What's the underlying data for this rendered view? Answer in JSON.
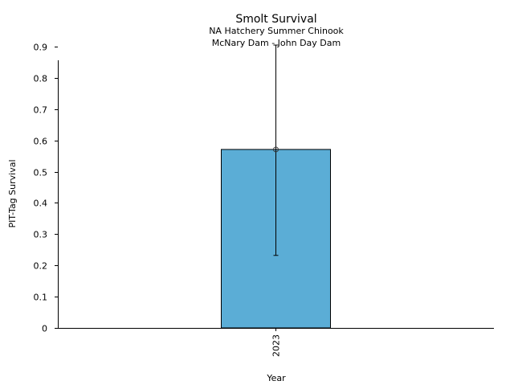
{
  "chart_data": {
    "type": "bar",
    "title": "Smolt Survival",
    "subtitle": [
      "NA Hatchery Summer Chinook",
      "McNary Dam - John Day Dam"
    ],
    "xlabel": "Year",
    "ylabel": "PIT-Tag Survival",
    "categories": [
      "2023"
    ],
    "values": [
      0.571
    ],
    "error_low": [
      0.232
    ],
    "error_high": [
      0.905
    ],
    "ylim": [
      0,
      0.95
    ],
    "yticks": [
      0,
      0.1,
      0.2,
      0.3,
      0.4,
      0.5,
      0.6,
      0.7,
      0.8,
      0.9
    ],
    "ytick_labels": [
      "0",
      "0.1",
      "0.2",
      "0.3",
      "0.4",
      "0.5",
      "0.6",
      "0.7",
      "0.8",
      "0.9"
    ],
    "grid": false,
    "bar_color": "#5badd6",
    "edge_color": "#000000"
  }
}
